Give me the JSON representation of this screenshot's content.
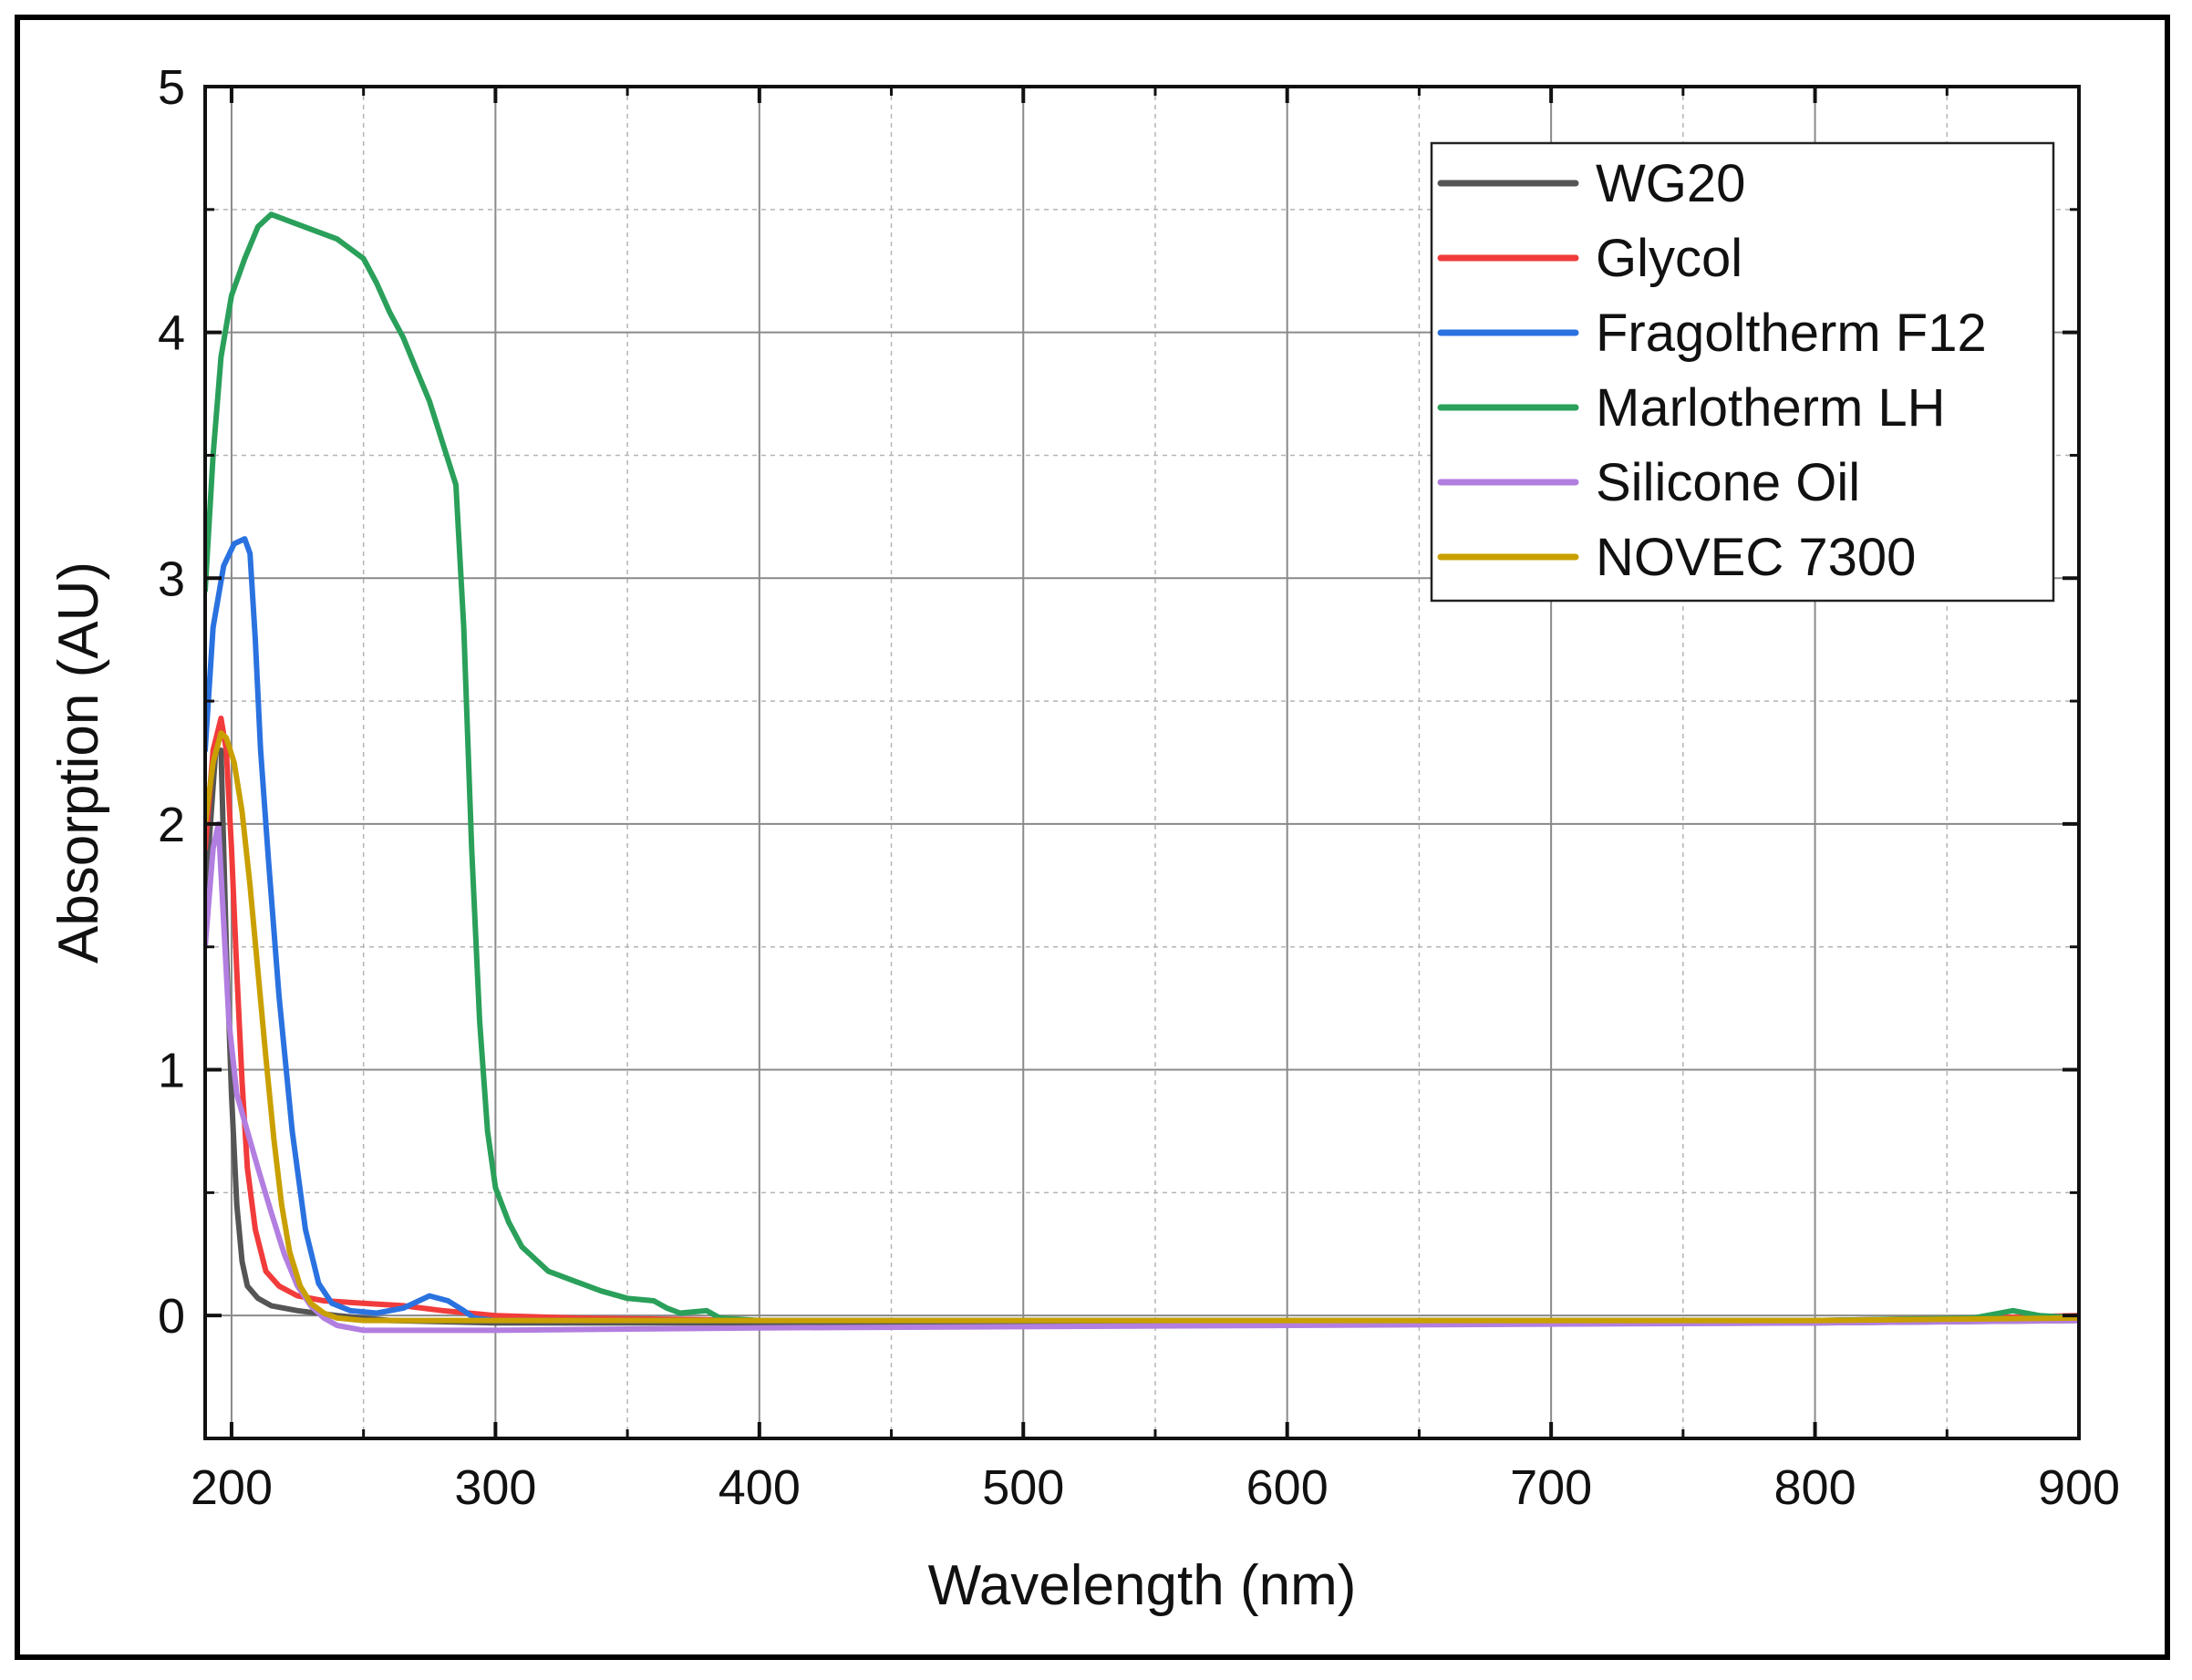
{
  "chart_data": {
    "type": "line",
    "title": "",
    "xlabel": "Wavelength (nm)",
    "ylabel": "Absorption (AU)",
    "xlim": [
      190,
      900
    ],
    "ylim": [
      -0.5,
      5
    ],
    "x_major_ticks": [
      200,
      300,
      400,
      500,
      600,
      700,
      800,
      900
    ],
    "x_minor_ticks": [
      250,
      350,
      450,
      550,
      650,
      750,
      850
    ],
    "y_major_ticks": [
      0,
      1,
      2,
      3,
      4,
      5
    ],
    "y_minor_ticks": [
      -0.5,
      0.5,
      1.5,
      2.5,
      3.5,
      4.5
    ],
    "x_tick_labels": [
      "200",
      "300",
      "400",
      "500",
      "600",
      "700",
      "800",
      "900"
    ],
    "y_tick_labels": [
      "0",
      "1",
      "2",
      "3",
      "4",
      "5"
    ],
    "grid": true,
    "legend_position": "top-right",
    "series": [
      {
        "name": "WG20",
        "color": "#555555",
        "points": [
          [
            190,
            1.7
          ],
          [
            194,
            2.3
          ],
          [
            196,
            2.3
          ],
          [
            198,
            1.5
          ],
          [
            200,
            0.9
          ],
          [
            202,
            0.45
          ],
          [
            204,
            0.22
          ],
          [
            206,
            0.12
          ],
          [
            210,
            0.07
          ],
          [
            215,
            0.04
          ],
          [
            225,
            0.02
          ],
          [
            240,
            0.0
          ],
          [
            260,
            -0.02
          ],
          [
            300,
            -0.03
          ],
          [
            400,
            -0.03
          ],
          [
            600,
            -0.03
          ],
          [
            800,
            -0.03
          ],
          [
            900,
            -0.02
          ]
        ]
      },
      {
        "name": "Glycol",
        "color": "#f23b3b",
        "points": [
          [
            190,
            1.9
          ],
          [
            193,
            2.3
          ],
          [
            196,
            2.43
          ],
          [
            198,
            2.3
          ],
          [
            200,
            1.9
          ],
          [
            202,
            1.4
          ],
          [
            204,
            0.95
          ],
          [
            206,
            0.6
          ],
          [
            209,
            0.35
          ],
          [
            213,
            0.18
          ],
          [
            218,
            0.12
          ],
          [
            225,
            0.08
          ],
          [
            235,
            0.06
          ],
          [
            250,
            0.05
          ],
          [
            265,
            0.04
          ],
          [
            280,
            0.02
          ],
          [
            300,
            0.0
          ],
          [
            330,
            -0.01
          ],
          [
            400,
            -0.02
          ],
          [
            600,
            -0.02
          ],
          [
            800,
            -0.02
          ],
          [
            860,
            -0.01
          ],
          [
            900,
            0.0
          ]
        ]
      },
      {
        "name": "Fragoltherm F12",
        "color": "#2a72e0",
        "points": [
          [
            190,
            2.3
          ],
          [
            193,
            2.8
          ],
          [
            197,
            3.05
          ],
          [
            201,
            3.14
          ],
          [
            205,
            3.16
          ],
          [
            207,
            3.1
          ],
          [
            209,
            2.75
          ],
          [
            211,
            2.3
          ],
          [
            214,
            1.85
          ],
          [
            218,
            1.3
          ],
          [
            223,
            0.75
          ],
          [
            228,
            0.35
          ],
          [
            233,
            0.13
          ],
          [
            238,
            0.05
          ],
          [
            245,
            0.02
          ],
          [
            255,
            0.01
          ],
          [
            265,
            0.03
          ],
          [
            275,
            0.08
          ],
          [
            282,
            0.06
          ],
          [
            288,
            0.02
          ],
          [
            292,
            -0.01
          ],
          [
            300,
            -0.02
          ],
          [
            400,
            -0.02
          ],
          [
            600,
            -0.02
          ],
          [
            800,
            -0.02
          ],
          [
            900,
            -0.01
          ]
        ]
      },
      {
        "name": "Marlotherm LH",
        "color": "#2aa05a",
        "points": [
          [
            190,
            2.95
          ],
          [
            193,
            3.5
          ],
          [
            196,
            3.9
          ],
          [
            200,
            4.15
          ],
          [
            205,
            4.3
          ],
          [
            210,
            4.43
          ],
          [
            215,
            4.48
          ],
          [
            220,
            4.46
          ],
          [
            230,
            4.42
          ],
          [
            240,
            4.38
          ],
          [
            250,
            4.3
          ],
          [
            255,
            4.2
          ],
          [
            260,
            4.08
          ],
          [
            265,
            3.98
          ],
          [
            270,
            3.85
          ],
          [
            275,
            3.72
          ],
          [
            280,
            3.55
          ],
          [
            285,
            3.38
          ],
          [
            288,
            2.8
          ],
          [
            291,
            1.9
          ],
          [
            294,
            1.2
          ],
          [
            297,
            0.75
          ],
          [
            300,
            0.52
          ],
          [
            305,
            0.38
          ],
          [
            310,
            0.28
          ],
          [
            320,
            0.18
          ],
          [
            330,
            0.14
          ],
          [
            340,
            0.1
          ],
          [
            350,
            0.07
          ],
          [
            360,
            0.06
          ],
          [
            365,
            0.03
          ],
          [
            370,
            0.01
          ],
          [
            380,
            0.02
          ],
          [
            385,
            -0.01
          ],
          [
            400,
            -0.02
          ],
          [
            600,
            -0.02
          ],
          [
            800,
            -0.02
          ],
          [
            860,
            -0.01
          ],
          [
            875,
            0.02
          ],
          [
            885,
            0.0
          ],
          [
            900,
            -0.01
          ]
        ]
      },
      {
        "name": "Silicone Oil",
        "color": "#b27ee0",
        "points": [
          [
            190,
            1.5
          ],
          [
            193,
            1.9
          ],
          [
            195,
            2.0
          ],
          [
            197,
            1.6
          ],
          [
            199,
            1.2
          ],
          [
            202,
            0.9
          ],
          [
            206,
            0.75
          ],
          [
            210,
            0.6
          ],
          [
            215,
            0.42
          ],
          [
            220,
            0.25
          ],
          [
            225,
            0.12
          ],
          [
            230,
            0.04
          ],
          [
            235,
            -0.01
          ],
          [
            240,
            -0.04
          ],
          [
            250,
            -0.06
          ],
          [
            300,
            -0.06
          ],
          [
            400,
            -0.05
          ],
          [
            600,
            -0.04
          ],
          [
            800,
            -0.03
          ],
          [
            900,
            -0.02
          ]
        ]
      },
      {
        "name": "NOVEC 7300",
        "color": "#c9a000",
        "points": [
          [
            190,
            2.0
          ],
          [
            193,
            2.25
          ],
          [
            196,
            2.37
          ],
          [
            198,
            2.35
          ],
          [
            201,
            2.25
          ],
          [
            204,
            2.05
          ],
          [
            207,
            1.75
          ],
          [
            210,
            1.4
          ],
          [
            213,
            1.05
          ],
          [
            216,
            0.72
          ],
          [
            219,
            0.45
          ],
          [
            222,
            0.26
          ],
          [
            226,
            0.12
          ],
          [
            230,
            0.05
          ],
          [
            235,
            0.01
          ],
          [
            240,
            -0.01
          ],
          [
            250,
            -0.02
          ],
          [
            300,
            -0.02
          ],
          [
            400,
            -0.02
          ],
          [
            600,
            -0.02
          ],
          [
            800,
            -0.02
          ],
          [
            900,
            -0.01
          ]
        ]
      }
    ]
  }
}
